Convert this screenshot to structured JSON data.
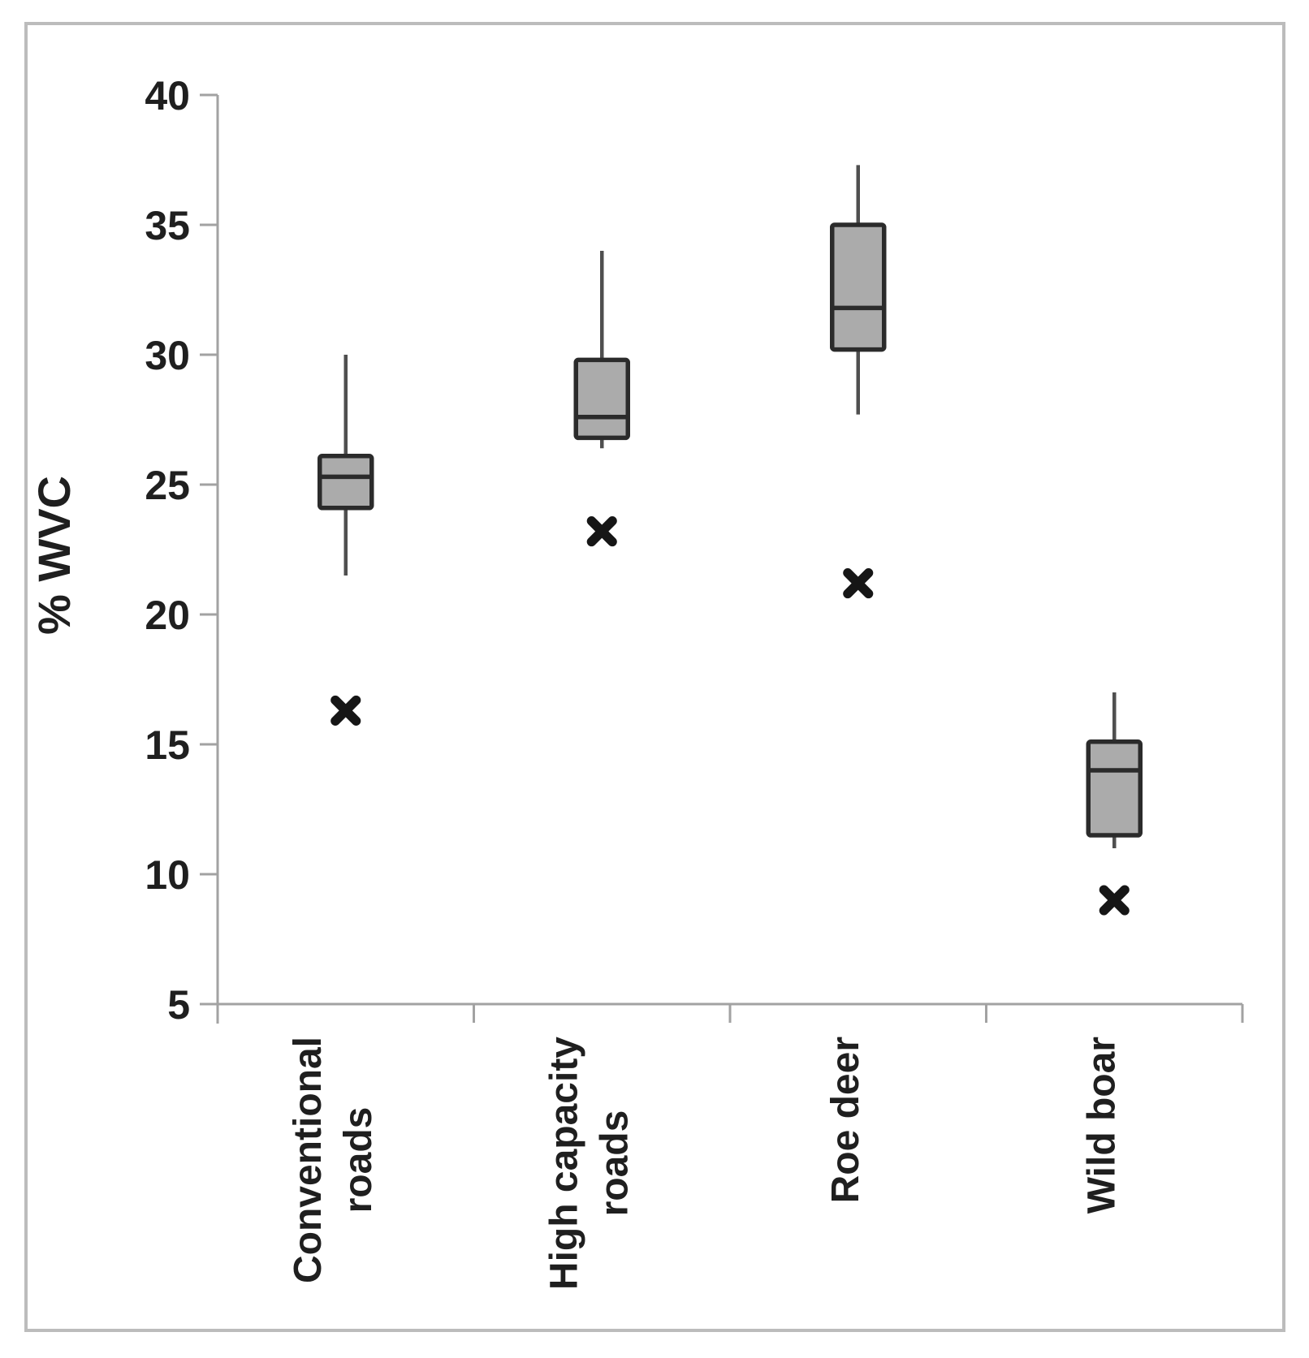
{
  "chart_data": {
    "type": "boxplot",
    "title": "",
    "ylabel": "% WVC",
    "xlabel": "",
    "ylim": [
      5,
      40
    ],
    "yticks": [
      40,
      35,
      30,
      25,
      20,
      15,
      10,
      5
    ],
    "grid": false,
    "legend": null,
    "categories": [
      "Conventional roads",
      "High capacity roads",
      "Roe deer",
      "Wild boar"
    ],
    "category_label_lines": [
      [
        "Conventional",
        "roads"
      ],
      [
        "High capacity",
        "roads"
      ],
      [
        "Roe deer"
      ],
      [
        "Wild boar"
      ]
    ],
    "series": [
      {
        "category": "Conventional roads",
        "whisker_low": 21.5,
        "q1": 24.1,
        "median": 25.3,
        "q3": 26.1,
        "whisker_high": 30.0,
        "outliers": [
          16.3
        ]
      },
      {
        "category": "High capacity roads",
        "whisker_low": 26.4,
        "q1": 26.8,
        "median": 27.6,
        "q3": 29.8,
        "whisker_high": 34.0,
        "outliers": [
          23.2
        ]
      },
      {
        "category": "Roe deer",
        "whisker_low": 27.7,
        "q1": 30.2,
        "median": 31.8,
        "q3": 35.0,
        "whisker_high": 37.3,
        "outliers": [
          21.2
        ]
      },
      {
        "category": "Wild boar",
        "whisker_low": 11.0,
        "q1": 11.5,
        "median": 14.0,
        "q3": 15.1,
        "whisker_high": 17.0,
        "outliers": [
          9.0
        ]
      }
    ],
    "outlier_marker": "heavy-x",
    "colors": {
      "box_fill": "#ababab",
      "box_border": "#2b2b2b",
      "median": "#2b2b2b",
      "whisker": "#4f4f4f",
      "axis": "#a2a2a2",
      "tick_label": "#1f1f1f",
      "marker": "#161616",
      "frame_border": "#bcbcbc",
      "background": "#ffffff"
    }
  }
}
